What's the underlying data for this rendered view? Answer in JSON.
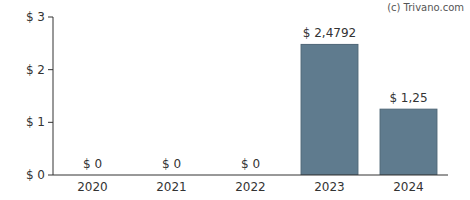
{
  "chart_data": {
    "type": "bar",
    "categories": [
      "2020",
      "2021",
      "2022",
      "2023",
      "2024"
    ],
    "values": [
      0,
      0,
      0,
      2.4792,
      1.25
    ],
    "value_labels": [
      "$ 0",
      "$ 0",
      "$ 0",
      "$ 2,4792",
      "$ 1,25"
    ],
    "data_labels": true,
    "color": "#5f7b8e",
    "ylim": [
      0,
      3
    ],
    "yticks": [
      {
        "value": 0,
        "label": "$ 0"
      },
      {
        "value": 1,
        "label": "$ 1"
      },
      {
        "value": 2,
        "label": "$ 2"
      },
      {
        "value": 3,
        "label": "$ 3"
      }
    ],
    "grid": false,
    "annotations": [
      "(c) Trivano.com"
    ]
  }
}
